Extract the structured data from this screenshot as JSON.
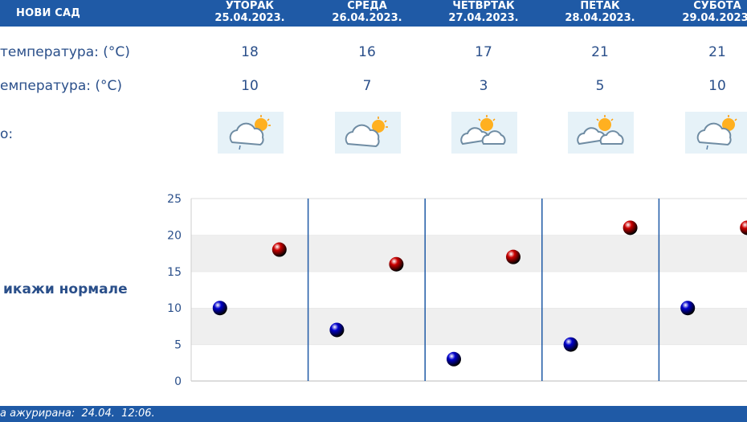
{
  "header": {
    "city": "НОВИ САД",
    "days": [
      {
        "name": "УТОРАК",
        "date": "25.04.2023."
      },
      {
        "name": "СРЕДА",
        "date": "26.04.2023."
      },
      {
        "name": "ЧЕТВРТАК",
        "date": "27.04.2023."
      },
      {
        "name": "ПЕТАК",
        "date": "28.04.2023."
      },
      {
        "name": "СУБОТА",
        "date": "29.04.2023."
      }
    ]
  },
  "rows": {
    "max_label": "температура: (°C)",
    "min_label": "емпература: (°C)",
    "icon_label": "o:",
    "max_values": [
      "18",
      "16",
      "17",
      "21",
      "21"
    ],
    "min_values": [
      "10",
      "7",
      "3",
      "5",
      "10"
    ]
  },
  "icons": [
    "cloud-sun-rain-icon",
    "cloud-sun-icon",
    "sun-cloud-icon",
    "sun-cloud-icon",
    "cloud-sun-rain-icon"
  ],
  "normals_label": "икажи нормале",
  "footer": {
    "updated_text": "а ажурирана:  24.04.  12:06."
  },
  "chart_data": {
    "type": "scatter",
    "ylim": [
      0,
      25
    ],
    "yticks": [
      "0",
      "5",
      "10",
      "15",
      "20",
      "25"
    ],
    "grid": true,
    "categories": [
      "25.04.2023.",
      "26.04.2023.",
      "27.04.2023.",
      "28.04.2023.",
      "29.04.2023."
    ],
    "series": [
      {
        "values": [
          10,
          7,
          3,
          5,
          10
        ],
        "color": "#0000cc"
      },
      {
        "values": [
          18,
          16,
          17,
          21,
          21
        ],
        "color": "#cc0000"
      }
    ]
  },
  "colors": {
    "header_bg": "#1f5aa6",
    "text": "#2a4f8a",
    "grid_band": "#efefef",
    "separator": "#1f5aa6"
  }
}
